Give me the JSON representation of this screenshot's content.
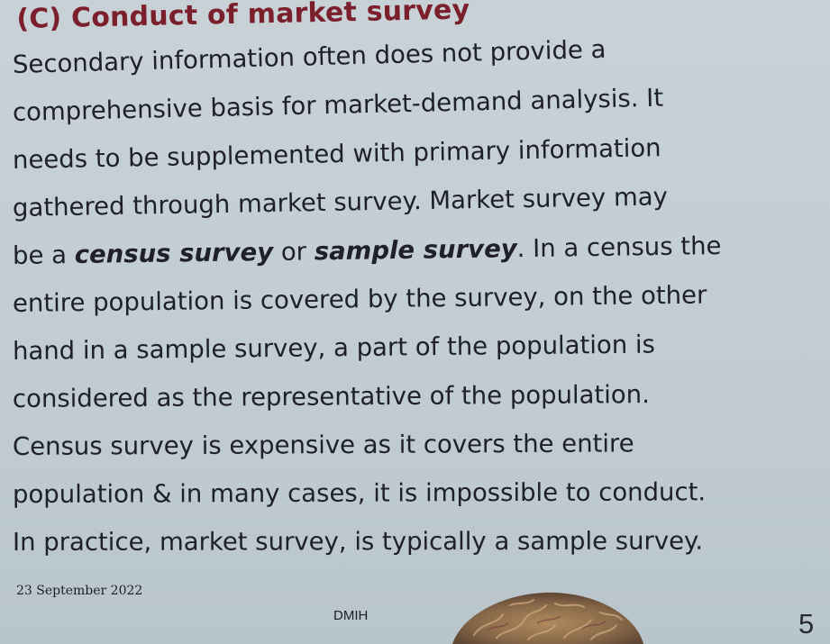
{
  "slide": {
    "heading": "(C) Conduct of market survey",
    "paragraph": [
      [
        {
          "text": "Secondary information often does not provide a"
        }
      ],
      [
        {
          "text": "comprehensive basis for market-demand analysis. It"
        }
      ],
      [
        {
          "text": "needs to be supplemented with primary information"
        }
      ],
      [
        {
          "text": "gathered through market survey. Market survey may"
        }
      ],
      [
        {
          "text": "be a "
        },
        {
          "text": "census survey",
          "emphasis": true
        },
        {
          "text": " or "
        },
        {
          "text": "sample survey",
          "emphasis": true
        },
        {
          "text": ". In a census the"
        }
      ],
      [
        {
          "text": "entire population is covered by the survey, on the other"
        }
      ],
      [
        {
          "text": "hand in a sample survey, a part of the population is"
        }
      ],
      [
        {
          "text": "considered as the representative of the population."
        }
      ],
      [
        {
          "text": "Census survey is expensive as it covers the entire"
        }
      ],
      [
        {
          "text": "population & in many cases, it is impossible to conduct."
        }
      ],
      [
        {
          "text": "In practice, market survey, is typically a sample survey."
        }
      ]
    ],
    "footer": {
      "date": "23 September 2022",
      "center": "DMIH",
      "page_number": "5"
    }
  },
  "colors": {
    "heading": "#7a1f2b",
    "text": "#202028",
    "background": "#c4cfd4",
    "brain_fill": "#8a6a4a"
  }
}
